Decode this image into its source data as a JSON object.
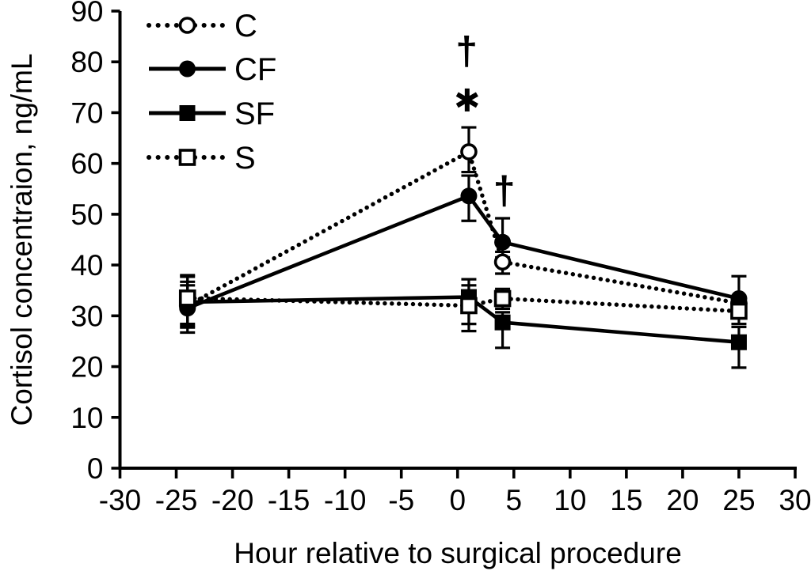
{
  "chart_data": {
    "type": "line",
    "title": "",
    "xlabel": "Hour relative to surgical procedure",
    "ylabel": "Cortisol concentraion, ng/mL",
    "xlim": [
      -30,
      30
    ],
    "ylim": [
      0,
      90
    ],
    "x_ticks": [
      -30,
      -25,
      -20,
      -15,
      -10,
      -5,
      0,
      5,
      10,
      15,
      20,
      25,
      30
    ],
    "y_ticks": [
      0,
      10,
      20,
      30,
      40,
      50,
      60,
      70,
      80,
      90
    ],
    "grid": false,
    "legend_position": "top-left",
    "x": [
      -24,
      1,
      4,
      25
    ],
    "series": [
      {
        "name": "C",
        "line": "dotted",
        "marker": "circle-open",
        "values": [
          32.0,
          62.3,
          40.6,
          32.5
        ],
        "err_up": [
          4.0,
          4.8,
          2.0,
          0
        ],
        "err_down": [
          4.0,
          4.0,
          2.3,
          0
        ]
      },
      {
        "name": "CF",
        "line": "solid",
        "marker": "circle-filled",
        "values": [
          31.5,
          53.6,
          44.5,
          33.4
        ],
        "err_up": [
          5.2,
          4.0,
          4.7,
          4.4
        ],
        "err_down": [
          4.8,
          4.9,
          3.0,
          3.0
        ]
      },
      {
        "name": "SF",
        "line": "solid",
        "marker": "square-filled",
        "values": [
          32.7,
          33.7,
          28.7,
          24.8
        ],
        "err_up": [
          5.0,
          3.5,
          2.0,
          3.0
        ],
        "err_down": [
          5.0,
          5.3,
          5.0,
          5.0
        ]
      },
      {
        "name": "S",
        "line": "dotted",
        "marker": "square-open",
        "values": [
          33.5,
          32.0,
          33.4,
          30.9
        ],
        "err_up": [
          4.5,
          4.0,
          1.9,
          3.0
        ],
        "err_down": [
          5.1,
          5.0,
          2.0,
          2.5
        ]
      }
    ],
    "annotations": [
      {
        "symbol": "†",
        "type": "dagger",
        "x": 0.8,
        "y": 82.0
      },
      {
        "symbol": "*",
        "type": "asterisk",
        "x": 0.85,
        "y": 72.5
      },
      {
        "symbol": "†",
        "type": "dagger",
        "x": 4.15,
        "y": 54.5
      }
    ]
  },
  "colors": {
    "foreground": "#000000",
    "background": "#ffffff"
  }
}
